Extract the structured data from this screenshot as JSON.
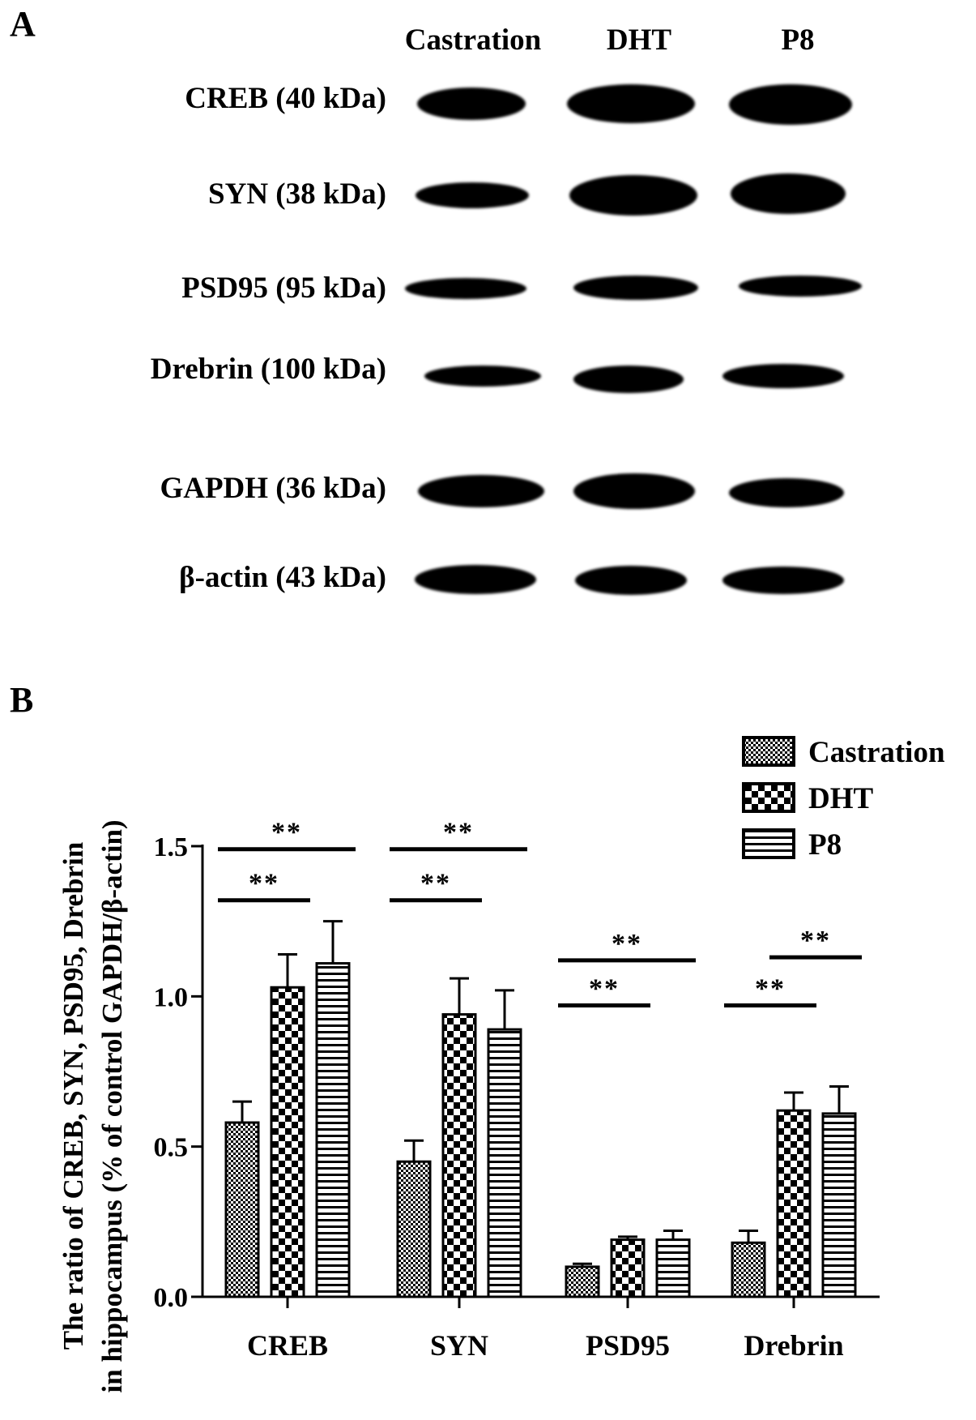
{
  "panel_a": {
    "letter": "A",
    "columns": [
      "Castration",
      "DHT",
      "P8"
    ],
    "rows": [
      {
        "label": "CREB (40 kDa)"
      },
      {
        "label": "SYN (38 kDa)"
      },
      {
        "label": "PSD95 (95 kDa)"
      },
      {
        "label": "Drebrin (100 kDa)"
      },
      {
        "label": "GAPDH (36 kDa)"
      },
      {
        "label": "β-actin (43 kDa)"
      }
    ]
  },
  "panel_b": {
    "letter": "B"
  },
  "chart_data": {
    "type": "bar",
    "categories": [
      "CREB",
      "SYN",
      "PSD95",
      "Drebrin"
    ],
    "series": [
      {
        "name": "Castration",
        "values": [
          0.58,
          0.45,
          0.1,
          0.18
        ],
        "errors": [
          0.07,
          0.07,
          0.01,
          0.04
        ],
        "pattern": "fine-check"
      },
      {
        "name": "DHT",
        "values": [
          1.03,
          0.94,
          0.19,
          0.62
        ],
        "errors": [
          0.11,
          0.12,
          0.01,
          0.06
        ],
        "pattern": "large-check"
      },
      {
        "name": "P8",
        "values": [
          1.11,
          0.89,
          0.19,
          0.61
        ],
        "errors": [
          0.14,
          0.13,
          0.03,
          0.09
        ],
        "pattern": "horizontal-stripes"
      }
    ],
    "ylabel_line1": "The ratio of CREB, SYN, PSD95, Drebrin",
    "ylabel_line2": "in hippocampus (% of control GAPDH/β-actin)",
    "ylim": [
      0,
      1.5
    ],
    "yticks": [
      "0.0",
      "0.5",
      "1.0",
      "1.5"
    ],
    "legend_position": "top-right",
    "significance": [
      {
        "category": "CREB",
        "from": "Castration",
        "to": "DHT",
        "label": "**",
        "level": 1.32
      },
      {
        "category": "CREB",
        "from": "Castration",
        "to": "P8",
        "label": "**",
        "level": 1.49
      },
      {
        "category": "SYN",
        "from": "Castration",
        "to": "DHT",
        "label": "**",
        "level": 1.32
      },
      {
        "category": "SYN",
        "from": "Castration",
        "to": "P8",
        "label": "**",
        "level": 1.49
      },
      {
        "category": "PSD95",
        "from": "Castration",
        "to": "DHT",
        "label": "**",
        "level": 0.97
      },
      {
        "category": "PSD95",
        "from": "Castration",
        "to": "P8",
        "label": "**",
        "level": 1.12
      },
      {
        "category": "Drebrin",
        "from": "Castration",
        "to": "DHT",
        "label": "**",
        "level": 0.97
      },
      {
        "category": "Drebrin",
        "from": "DHT",
        "to": "P8",
        "label": "**",
        "level": 1.13
      }
    ],
    "grid": false
  }
}
